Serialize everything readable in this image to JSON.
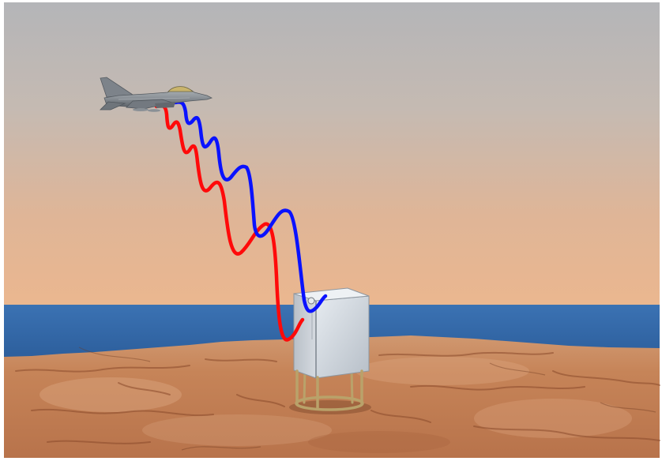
{
  "scene": {
    "icons": {
      "aircraft": "fighter-jet-icon",
      "receiver": "sensor-box-icon",
      "stand": "tripod-stand-icon"
    },
    "colors": {
      "signal_red": "#ff0a0a",
      "signal_blue": "#0a12ff",
      "sky_top": "#b4b5b8",
      "sky_bottom": "#ebb78f",
      "sea": "#3468a8",
      "ground": "#c4835a",
      "stand": "#b9a26a",
      "box": "#d9dee4"
    }
  }
}
